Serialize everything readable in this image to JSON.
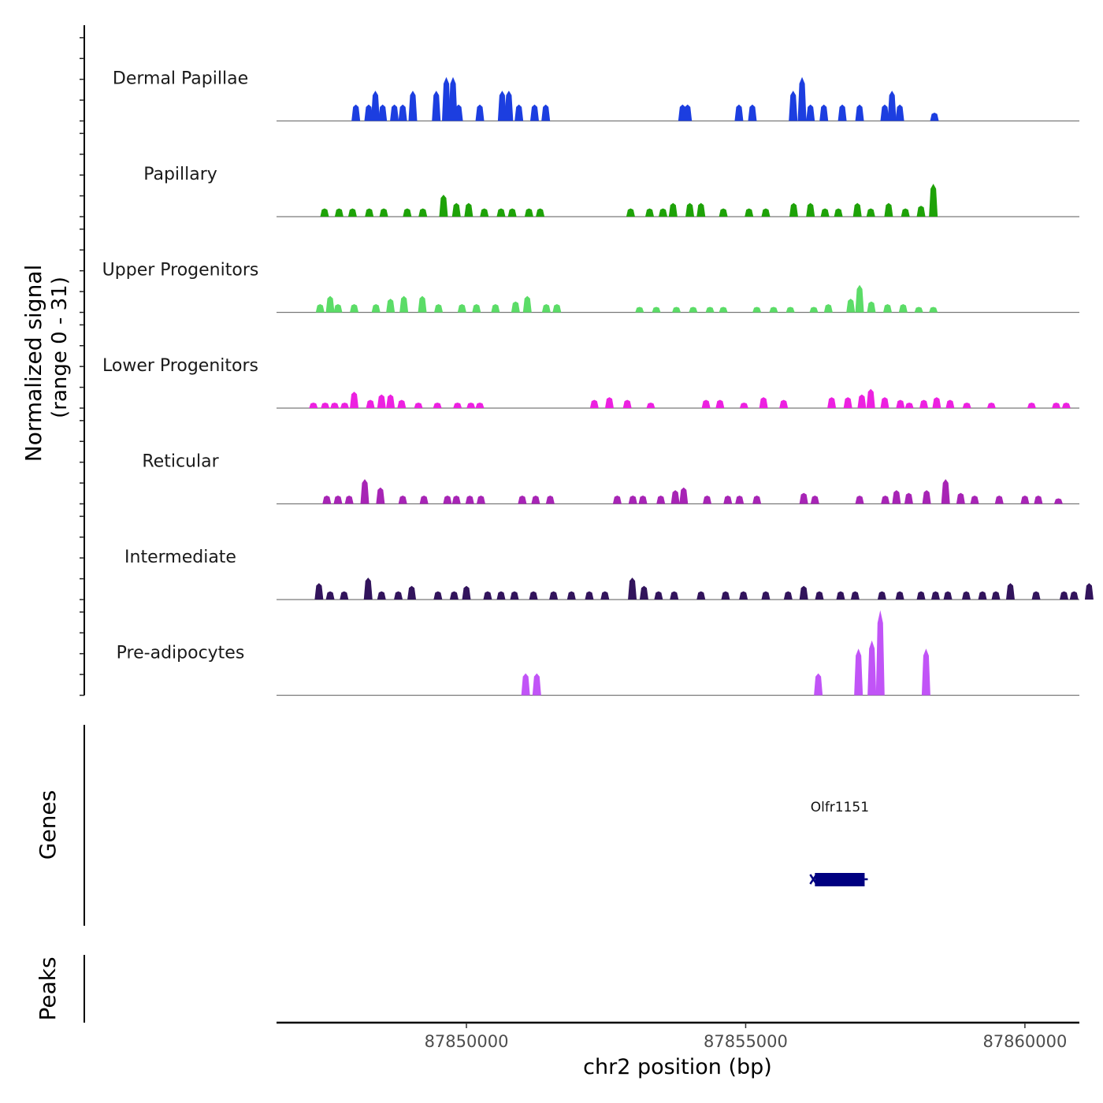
{
  "chart_data": {
    "type": "area",
    "title": "",
    "chromosome": "chr2",
    "xlabel": "chr2 position (bp)",
    "ylabel": "Normalized signal",
    "ylabel_range": "(range 0 - 31)",
    "ylim": [
      0,
      31
    ],
    "xlim": [
      87846600,
      87860975
    ],
    "x_ticks": [
      87850000,
      87855000,
      87860000
    ],
    "x_tick_labels": [
      "87850000",
      "87855000",
      "87860000"
    ],
    "tracks": [
      {
        "name": "Dermal Papillae",
        "color": "#1c3ee0",
        "peaks": [
          [
            87848020,
            6
          ],
          [
            87848250,
            6
          ],
          [
            87848370,
            11
          ],
          [
            87848500,
            6
          ],
          [
            87848710,
            6
          ],
          [
            87848860,
            6
          ],
          [
            87849040,
            11
          ],
          [
            87849460,
            11
          ],
          [
            87849640,
            16
          ],
          [
            87849760,
            16
          ],
          [
            87849860,
            6
          ],
          [
            87850240,
            6
          ],
          [
            87850640,
            11
          ],
          [
            87850760,
            11
          ],
          [
            87850940,
            6
          ],
          [
            87851220,
            6
          ],
          [
            87851420,
            6
          ],
          [
            87853870,
            6
          ],
          [
            87853960,
            6
          ],
          [
            87854880,
            6
          ],
          [
            87855120,
            6
          ],
          [
            87855850,
            11
          ],
          [
            87856010,
            16
          ],
          [
            87856160,
            6
          ],
          [
            87856400,
            6
          ],
          [
            87856730,
            6
          ],
          [
            87857040,
            6
          ],
          [
            87857490,
            6
          ],
          [
            87857620,
            11
          ],
          [
            87857760,
            6
          ],
          [
            87858380,
            3
          ]
        ]
      },
      {
        "name": "Papillary",
        "color": "#1ea208",
        "peaks": [
          [
            87847460,
            3
          ],
          [
            87847720,
            3
          ],
          [
            87847960,
            3
          ],
          [
            87848260,
            3
          ],
          [
            87848520,
            3
          ],
          [
            87848940,
            3
          ],
          [
            87849220,
            3
          ],
          [
            87849590,
            8
          ],
          [
            87849820,
            5
          ],
          [
            87850040,
            5
          ],
          [
            87850320,
            3
          ],
          [
            87850620,
            3
          ],
          [
            87850820,
            3
          ],
          [
            87851120,
            3
          ],
          [
            87851320,
            3
          ],
          [
            87852940,
            3
          ],
          [
            87853280,
            3
          ],
          [
            87853520,
            3
          ],
          [
            87853700,
            5
          ],
          [
            87854000,
            5
          ],
          [
            87854200,
            5
          ],
          [
            87854600,
            3
          ],
          [
            87855060,
            3
          ],
          [
            87855360,
            3
          ],
          [
            87855860,
            5
          ],
          [
            87856160,
            5
          ],
          [
            87856420,
            3
          ],
          [
            87856660,
            3
          ],
          [
            87857000,
            5
          ],
          [
            87857240,
            3
          ],
          [
            87857560,
            5
          ],
          [
            87857860,
            3
          ],
          [
            87858140,
            4
          ],
          [
            87858360,
            12
          ]
        ]
      },
      {
        "name": "Upper Progenitors",
        "color": "#5bdc67",
        "peaks": [
          [
            87847380,
            3
          ],
          [
            87847560,
            6
          ],
          [
            87847700,
            3
          ],
          [
            87847990,
            3
          ],
          [
            87848380,
            3
          ],
          [
            87848640,
            5
          ],
          [
            87848880,
            6
          ],
          [
            87849210,
            6
          ],
          [
            87849500,
            3
          ],
          [
            87849920,
            3
          ],
          [
            87850180,
            3
          ],
          [
            87850520,
            3
          ],
          [
            87850880,
            4
          ],
          [
            87851090,
            6
          ],
          [
            87851430,
            3
          ],
          [
            87851620,
            3
          ],
          [
            87853100,
            2
          ],
          [
            87853400,
            2
          ],
          [
            87853760,
            2
          ],
          [
            87854060,
            2
          ],
          [
            87854360,
            2
          ],
          [
            87854600,
            2
          ],
          [
            87855200,
            2
          ],
          [
            87855500,
            2
          ],
          [
            87855800,
            2
          ],
          [
            87856220,
            2
          ],
          [
            87856480,
            3
          ],
          [
            87856880,
            5
          ],
          [
            87857040,
            10
          ],
          [
            87857250,
            4
          ],
          [
            87857540,
            3
          ],
          [
            87857820,
            3
          ],
          [
            87858100,
            2
          ],
          [
            87858360,
            2
          ]
        ]
      },
      {
        "name": "Lower Progenitors",
        "color": "#ec21e0",
        "peaks": [
          [
            87847260,
            2
          ],
          [
            87847470,
            2
          ],
          [
            87847640,
            2
          ],
          [
            87847820,
            2
          ],
          [
            87847990,
            6
          ],
          [
            87848280,
            3
          ],
          [
            87848480,
            5
          ],
          [
            87848640,
            5
          ],
          [
            87848840,
            3
          ],
          [
            87849140,
            2
          ],
          [
            87849480,
            2
          ],
          [
            87849840,
            2
          ],
          [
            87850080,
            2
          ],
          [
            87850240,
            2
          ],
          [
            87852290,
            3
          ],
          [
            87852560,
            4
          ],
          [
            87852880,
            3
          ],
          [
            87853300,
            2
          ],
          [
            87854290,
            3
          ],
          [
            87854540,
            3
          ],
          [
            87854970,
            2
          ],
          [
            87855320,
            4
          ],
          [
            87855680,
            3
          ],
          [
            87856540,
            4
          ],
          [
            87856830,
            4
          ],
          [
            87857080,
            5
          ],
          [
            87857240,
            7
          ],
          [
            87857490,
            4
          ],
          [
            87857770,
            3
          ],
          [
            87857930,
            2
          ],
          [
            87858190,
            3
          ],
          [
            87858420,
            4
          ],
          [
            87858660,
            3
          ],
          [
            87858960,
            2
          ],
          [
            87859400,
            2
          ],
          [
            87860120,
            2
          ],
          [
            87860560,
            2
          ],
          [
            87860740,
            2
          ]
        ]
      },
      {
        "name": "Reticular",
        "color": "#a724b5",
        "peaks": [
          [
            87847500,
            3
          ],
          [
            87847700,
            3
          ],
          [
            87847900,
            3
          ],
          [
            87848180,
            9
          ],
          [
            87848460,
            6
          ],
          [
            87848860,
            3
          ],
          [
            87849240,
            3
          ],
          [
            87849660,
            3
          ],
          [
            87849820,
            3
          ],
          [
            87850060,
            3
          ],
          [
            87850260,
            3
          ],
          [
            87851000,
            3
          ],
          [
            87851240,
            3
          ],
          [
            87851500,
            3
          ],
          [
            87852700,
            3
          ],
          [
            87852980,
            3
          ],
          [
            87853160,
            3
          ],
          [
            87853480,
            3
          ],
          [
            87853740,
            5
          ],
          [
            87853890,
            6
          ],
          [
            87854310,
            3
          ],
          [
            87854680,
            3
          ],
          [
            87854890,
            3
          ],
          [
            87855200,
            3
          ],
          [
            87856040,
            4
          ],
          [
            87856240,
            3
          ],
          [
            87857040,
            3
          ],
          [
            87857500,
            3
          ],
          [
            87857700,
            5
          ],
          [
            87857920,
            4
          ],
          [
            87858240,
            5
          ],
          [
            87858580,
            9
          ],
          [
            87858850,
            4
          ],
          [
            87859100,
            3
          ],
          [
            87859540,
            3
          ],
          [
            87860000,
            3
          ],
          [
            87860240,
            3
          ],
          [
            87860600,
            2
          ]
        ]
      },
      {
        "name": "Intermediate",
        "color": "#32145c",
        "peaks": [
          [
            87847360,
            6
          ],
          [
            87847560,
            3
          ],
          [
            87847810,
            3
          ],
          [
            87848240,
            8
          ],
          [
            87848480,
            3
          ],
          [
            87848780,
            3
          ],
          [
            87849020,
            5
          ],
          [
            87849490,
            3
          ],
          [
            87849780,
            3
          ],
          [
            87850000,
            5
          ],
          [
            87850380,
            3
          ],
          [
            87850620,
            3
          ],
          [
            87850860,
            3
          ],
          [
            87851200,
            3
          ],
          [
            87851560,
            3
          ],
          [
            87851880,
            3
          ],
          [
            87852200,
            3
          ],
          [
            87852480,
            3
          ],
          [
            87852970,
            8
          ],
          [
            87853180,
            5
          ],
          [
            87853440,
            3
          ],
          [
            87853720,
            3
          ],
          [
            87854200,
            3
          ],
          [
            87854640,
            3
          ],
          [
            87854960,
            3
          ],
          [
            87855360,
            3
          ],
          [
            87855760,
            3
          ],
          [
            87856040,
            5
          ],
          [
            87856320,
            3
          ],
          [
            87856700,
            3
          ],
          [
            87856960,
            3
          ],
          [
            87857440,
            3
          ],
          [
            87857760,
            3
          ],
          [
            87858140,
            3
          ],
          [
            87858400,
            3
          ],
          [
            87858620,
            3
          ],
          [
            87858950,
            3
          ],
          [
            87859240,
            3
          ],
          [
            87859480,
            3
          ],
          [
            87859740,
            6
          ],
          [
            87860200,
            3
          ],
          [
            87860700,
            3
          ],
          [
            87860880,
            3
          ],
          [
            87861150,
            6
          ]
        ]
      },
      {
        "name": "Pre-adipocytes",
        "color": "#c154f7",
        "peaks": [
          [
            87851060,
            8
          ],
          [
            87851260,
            8
          ],
          [
            87856300,
            8
          ],
          [
            87857020,
            17
          ],
          [
            87857260,
            20
          ],
          [
            87857410,
            31
          ],
          [
            87858230,
            17
          ]
        ]
      }
    ],
    "genes": [
      {
        "name": "Olfr1151",
        "start": 87856240,
        "end": 87857130,
        "strand": "-",
        "color": "#000080"
      }
    ],
    "genes_label": "Genes",
    "peaks_label": "Peaks"
  }
}
